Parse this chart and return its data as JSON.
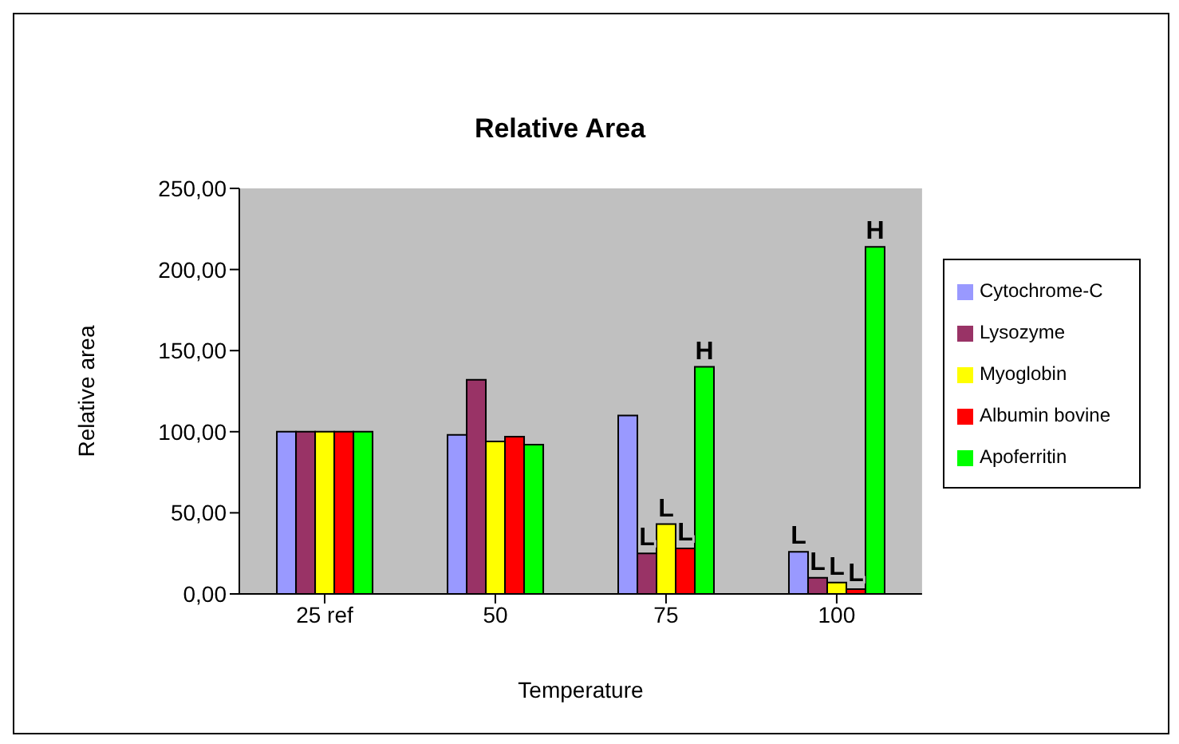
{
  "chart_data": {
    "type": "bar",
    "title": "Relative Area",
    "xlabel": "Temperature",
    "ylabel": "Relative area",
    "categories": [
      "25 ref",
      "50",
      "75",
      "100"
    ],
    "series": [
      {
        "name": "Cytochrome-C",
        "color": "#9999ff",
        "values": [
          100,
          98,
          110,
          26
        ],
        "value_labels": [
          null,
          null,
          null,
          "L"
        ]
      },
      {
        "name": "Lysozyme",
        "color": "#993366",
        "values": [
          100,
          132,
          25,
          10
        ],
        "value_labels": [
          null,
          null,
          "L",
          "L"
        ]
      },
      {
        "name": "Myoglobin",
        "color": "#ffff00",
        "values": [
          100,
          94,
          43,
          7
        ],
        "value_labels": [
          null,
          null,
          "L",
          "L"
        ]
      },
      {
        "name": "Albumin bovine",
        "color": "#ff0000",
        "values": [
          100,
          97,
          28,
          3
        ],
        "value_labels": [
          null,
          null,
          "L",
          "L"
        ]
      },
      {
        "name": "Apoferritin",
        "color": "#00ff00",
        "values": [
          100,
          92,
          140,
          214
        ],
        "value_labels": [
          null,
          null,
          "H",
          "H"
        ]
      }
    ],
    "ylim": [
      0,
      250
    ],
    "yticks": [
      {
        "value": 0,
        "label": "0,00"
      },
      {
        "value": 50,
        "label": "50,00"
      },
      {
        "value": 100,
        "label": "100,00"
      },
      {
        "value": 150,
        "label": "150,00"
      },
      {
        "value": 200,
        "label": "200,00"
      },
      {
        "value": 250,
        "label": "250,00"
      }
    ],
    "legend": "right"
  }
}
